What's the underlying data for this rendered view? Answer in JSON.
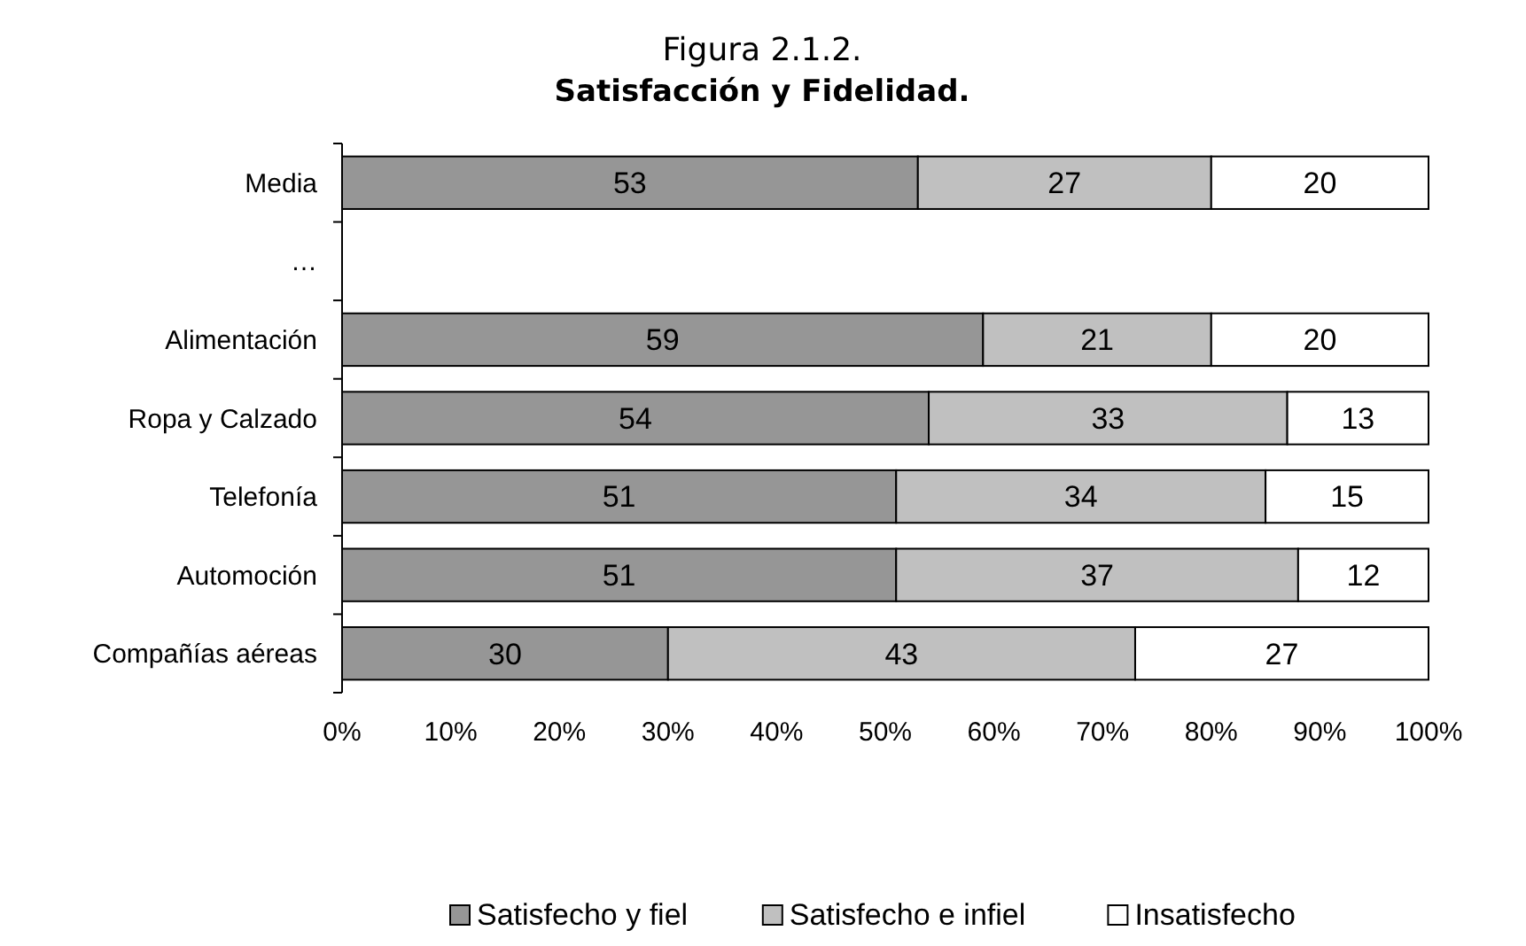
{
  "chart_data": {
    "type": "bar",
    "orientation": "horizontal",
    "stacked": true,
    "title": "Figura 2.1.2.",
    "subtitle": "Satisfacción y Fidelidad.",
    "categories": [
      "Media",
      "…",
      "Alimentación",
      "Ropa y Calzado",
      "Telefonía",
      "Automoción",
      "Compañías aéreas"
    ],
    "series": [
      {
        "name": "Satisfecho y fiel",
        "color": "#969696",
        "values": [
          53,
          null,
          59,
          54,
          51,
          51,
          30
        ]
      },
      {
        "name": "Satisfecho e infiel",
        "color": "#c0c0c0",
        "values": [
          27,
          null,
          21,
          33,
          34,
          37,
          43
        ]
      },
      {
        "name": "Insatisfecho",
        "color": "#ffffff",
        "values": [
          20,
          null,
          20,
          13,
          15,
          12,
          27
        ]
      }
    ],
    "xlim": [
      0,
      100
    ],
    "xticks": [
      {
        "value": 0,
        "label": "0%"
      },
      {
        "value": 10,
        "label": "10%"
      },
      {
        "value": 20,
        "label": "20%"
      },
      {
        "value": 30,
        "label": "30%"
      },
      {
        "value": 40,
        "label": "40%"
      },
      {
        "value": 50,
        "label": "50%"
      },
      {
        "value": 60,
        "label": "60%"
      },
      {
        "value": 70,
        "label": "70%"
      },
      {
        "value": 80,
        "label": "80%"
      },
      {
        "value": 90,
        "label": "90%"
      },
      {
        "value": 100,
        "label": "100%"
      }
    ],
    "data_labels": true,
    "legend": "bottom",
    "grid": false
  }
}
